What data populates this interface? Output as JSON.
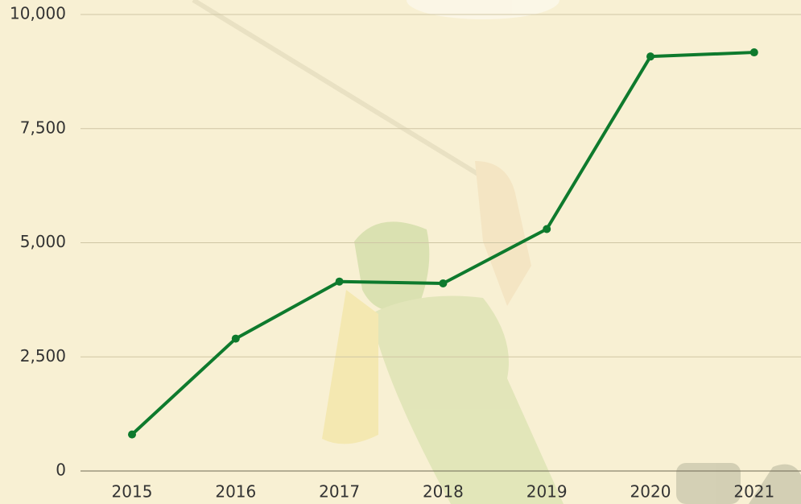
{
  "chart_data": {
    "type": "line",
    "categories": [
      "2015",
      "2016",
      "2017",
      "2018",
      "2019",
      "2020",
      "2021"
    ],
    "values": [
      800,
      2900,
      4150,
      4110,
      5300,
      9080,
      9170
    ],
    "color": "#0e7a2d",
    "ylim": [
      0,
      10000
    ],
    "yticks": [
      0,
      {
        "value": 2500,
        "label": "2,500"
      },
      {
        "value": 5000,
        "label": "5,000"
      },
      {
        "value": 7500,
        "label": "7,500"
      },
      {
        "value": 10000,
        "label": "10,000"
      }
    ],
    "grid": true
  }
}
